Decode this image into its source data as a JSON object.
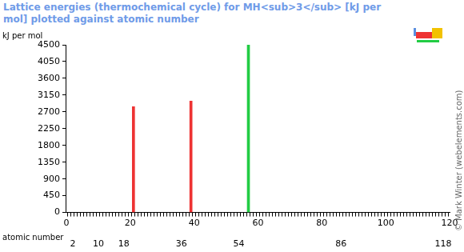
{
  "chart_data": {
    "type": "bar",
    "title": "Lattice energies (thermochemical cycle) for MH<sub>3</sub> [kJ per mol] plotted against atomic number",
    "ylabel": "kJ per mol",
    "xlabel": "atomic number",
    "x": [
      21,
      39,
      57
    ],
    "values": [
      2840,
      2990,
      4500
    ],
    "colors": [
      "#ee3333",
      "#ee3333",
      "#22cc44"
    ],
    "xlim": [
      0,
      120
    ],
    "xticks": [
      0,
      20,
      40,
      60,
      80,
      100,
      120
    ],
    "x2lim": [
      0,
      120
    ],
    "x2ticks": [
      2,
      10,
      18,
      36,
      54,
      86,
      118
    ],
    "ylim": [
      0,
      4500
    ],
    "yticks": [
      0,
      450,
      900,
      1350,
      1800,
      2250,
      2700,
      3150,
      3600,
      4050,
      4500
    ],
    "grid": false,
    "annotations": [
      "© Mark Winter (webelements.com)"
    ]
  }
}
